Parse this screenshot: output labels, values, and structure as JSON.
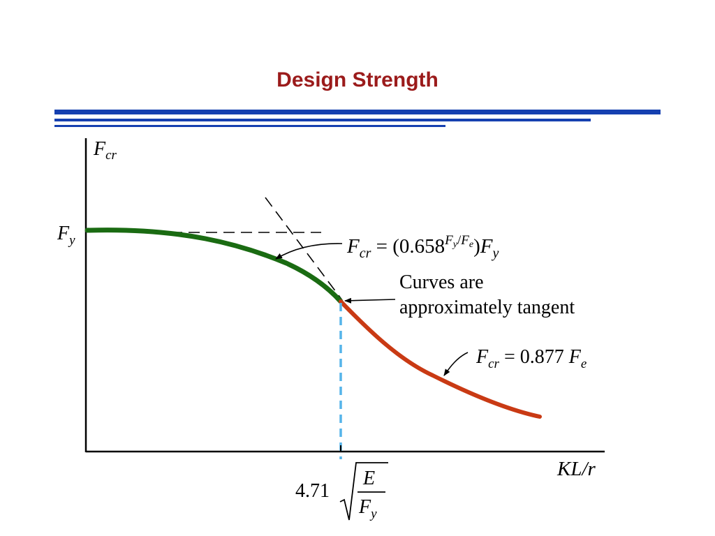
{
  "slide": {
    "title": "Design Strength",
    "title_color": "#9b1b1b",
    "rule_color": "#1540b0"
  },
  "figure": {
    "y_axis_label": {
      "main": "F",
      "sub": "cr"
    },
    "y_tick_label": {
      "main": "F",
      "sub": "y"
    },
    "x_axis_label": "KL/r",
    "x_mark_label": {
      "coef": "4.71",
      "numerator": "E",
      "denominator_main": "F",
      "denominator_sub": "y"
    },
    "inelastic_equation": {
      "lhs_main": "F",
      "lhs_sub": "cr",
      "eq": " = (0.658",
      "exp_a": "F",
      "exp_a_sub": "y",
      "exp_slash": "/",
      "exp_b": "F",
      "exp_b_sub": "e",
      "close": ")",
      "rhs_main": "F",
      "rhs_sub": "y"
    },
    "tangent_note": [
      "Curves are",
      "approximately tangent"
    ],
    "elastic_equation": {
      "lhs_main": "F",
      "lhs_sub": "cr",
      "eq": " = 0.877 ",
      "rhs_main": "F",
      "rhs_sub": "e"
    },
    "colors": {
      "inelastic_curve": "#1a6b12",
      "elastic_curve": "#c93a14",
      "transition_marker": "#55b4ea"
    }
  }
}
